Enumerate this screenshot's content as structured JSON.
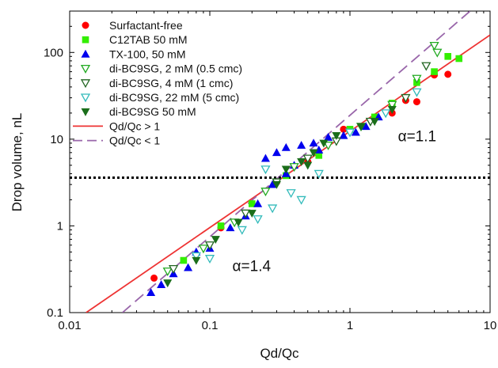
{
  "chart_data": {
    "type": "scatter",
    "title": "",
    "xlabel": "Qd/Qc",
    "ylabel": "Drop volume, nL",
    "xscale": "log",
    "yscale": "log",
    "xlim": [
      0.01,
      10
    ],
    "ylim": [
      0.1,
      300
    ],
    "x_tick_values": [
      0.01,
      0.1,
      1,
      10
    ],
    "x_tick_labels": [
      "0.01",
      "0.1",
      "1",
      "10"
    ],
    "y_tick_values": [
      0.1,
      1,
      10,
      100
    ],
    "y_tick_labels": [
      "0.1",
      "1",
      "10",
      "100"
    ],
    "grid": false,
    "legend_position": "top-left",
    "series": [
      {
        "name": "Surfactant-free",
        "marker": "circle",
        "color": "#ff0000",
        "fill": true,
        "points": [
          [
            0.04,
            0.25
          ],
          [
            0.12,
            0.95
          ],
          [
            0.3,
            3.2
          ],
          [
            0.5,
            5.5
          ],
          [
            0.9,
            13
          ],
          [
            2.0,
            20
          ],
          [
            2.5,
            28
          ],
          [
            3.0,
            27
          ],
          [
            4.0,
            55
          ],
          [
            5.0,
            56
          ]
        ]
      },
      {
        "name": "C12TAB 50 mM",
        "marker": "square",
        "color": "#33ee00",
        "fill": true,
        "points": [
          [
            0.065,
            0.4
          ],
          [
            0.12,
            1.0
          ],
          [
            0.2,
            1.8
          ],
          [
            0.35,
            3.8
          ],
          [
            0.6,
            6.5
          ],
          [
            1.0,
            13
          ],
          [
            1.5,
            18
          ],
          [
            2.0,
            26
          ],
          [
            3.0,
            45
          ],
          [
            4.0,
            60
          ],
          [
            5.0,
            90
          ],
          [
            6.0,
            85
          ]
        ]
      },
      {
        "name": "TX-100, 50 mM",
        "marker": "triangle-up",
        "color": "#0000ee",
        "fill": true,
        "points": [
          [
            0.038,
            0.17
          ],
          [
            0.045,
            0.21
          ],
          [
            0.055,
            0.28
          ],
          [
            0.07,
            0.33
          ],
          [
            0.08,
            0.5
          ],
          [
            0.1,
            0.55
          ],
          [
            0.14,
            0.95
          ],
          [
            0.18,
            1.3
          ],
          [
            0.22,
            1.8
          ],
          [
            0.28,
            3.0
          ],
          [
            0.35,
            4.0
          ],
          [
            0.4,
            5.0
          ],
          [
            0.3,
            7.0
          ],
          [
            0.35,
            8.0
          ],
          [
            0.45,
            8.5
          ],
          [
            0.55,
            9.0
          ],
          [
            0.7,
            10.5
          ],
          [
            0.25,
            6.0
          ],
          [
            0.6,
            7.5
          ],
          [
            0.9,
            11
          ],
          [
            1.1,
            12
          ],
          [
            1.3,
            14
          ],
          [
            1.6,
            18
          ]
        ]
      },
      {
        "name": "di-BC9SG, 2 mM (0.5 cmc)",
        "marker": "triangle-down",
        "color": "#22aa22",
        "fill": false,
        "points": [
          [
            0.05,
            0.3
          ],
          [
            0.09,
            0.55
          ],
          [
            0.15,
            1.1
          ],
          [
            0.25,
            2.5
          ],
          [
            0.4,
            4.8
          ],
          [
            0.7,
            8.5
          ],
          [
            1.2,
            14
          ],
          [
            2.0,
            25
          ],
          [
            3.0,
            50
          ],
          [
            4.0,
            120
          ],
          [
            4.2,
            100
          ]
        ]
      },
      {
        "name": "di-BC9SG, 4 mM (1 cmc)",
        "marker": "triangle-down",
        "color": "#226622",
        "fill": false,
        "points": [
          [
            0.055,
            0.32
          ],
          [
            0.1,
            0.6
          ],
          [
            0.18,
            1.4
          ],
          [
            0.3,
            3.2
          ],
          [
            0.5,
            6.0
          ],
          [
            0.8,
            9.5
          ],
          [
            1.4,
            16
          ],
          [
            2.5,
            30
          ],
          [
            3.5,
            70
          ]
        ]
      },
      {
        "name": "di-BC9SG, 22 mM (5 cmc)",
        "marker": "triangle-down",
        "color": "#33bbbb",
        "fill": false,
        "points": [
          [
            0.08,
            0.45
          ],
          [
            0.1,
            0.42
          ],
          [
            0.17,
            0.9
          ],
          [
            0.22,
            1.2
          ],
          [
            0.28,
            1.6
          ],
          [
            0.38,
            2.4
          ],
          [
            0.45,
            2.0
          ],
          [
            0.6,
            4.0
          ],
          [
            0.25,
            4.5
          ],
          [
            1.0,
            12
          ],
          [
            1.8,
            20
          ],
          [
            3.0,
            35
          ]
        ]
      },
      {
        "name": "di-BC9SG 50 mM",
        "marker": "triangle-down",
        "color": "#1a6e1a",
        "fill": true,
        "points": [
          [
            0.05,
            0.22
          ],
          [
            0.08,
            0.4
          ],
          [
            0.11,
            0.7
          ],
          [
            0.16,
            1.1
          ],
          [
            0.2,
            1.4
          ],
          [
            0.3,
            3.0
          ],
          [
            0.35,
            4.5
          ],
          [
            0.45,
            5.5
          ],
          [
            0.55,
            7.0
          ],
          [
            0.5,
            5.0
          ],
          [
            0.65,
            9.0
          ],
          [
            0.8,
            11
          ],
          [
            1.2,
            14
          ],
          [
            1.5,
            16
          ],
          [
            2.0,
            22
          ]
        ]
      }
    ],
    "lines": [
      {
        "name": "Qd/Qc > 1",
        "style": "solid",
        "color": "#ee3333",
        "points": [
          [
            0.0131,
            0.1
          ],
          [
            10,
            159
          ]
        ]
      },
      {
        "name": "Qd/Qc < 1",
        "style": "dashed",
        "color": "#9966aa",
        "points": [
          [
            0.0238,
            0.1
          ],
          [
            7.2,
            300
          ]
        ]
      }
    ],
    "threshold_line": {
      "y": 3.6,
      "style": "dotted",
      "color": "#000000"
    },
    "annotations": [
      {
        "text": "α=1.1",
        "x": 2.2,
        "y": 9.5
      },
      {
        "text": "α=1.4",
        "x": 0.145,
        "y": 0.3
      }
    ]
  }
}
